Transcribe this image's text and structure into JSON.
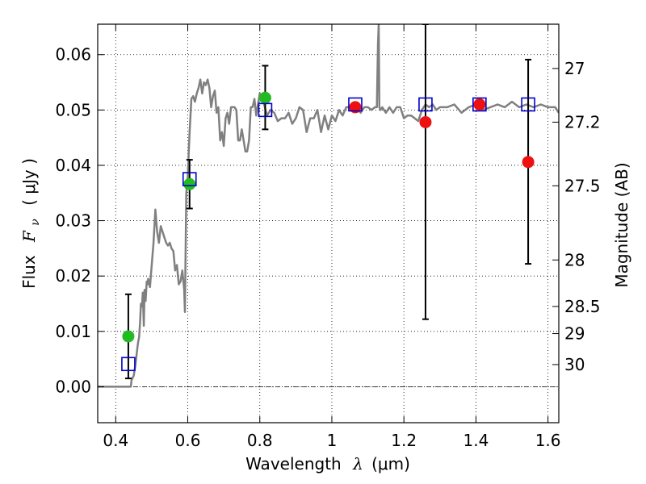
{
  "chart_data": {
    "type": "scatter",
    "xlabel_text": "Wavelength",
    "xlabel_symbol": "λ",
    "xlabel_unit": "(μm)",
    "ylabel_text": "Flux",
    "ylabel_symbol": "F",
    "ylabel_sub": "ν",
    "ylabel_unit": "( μJy )",
    "y2label": "Magnitude (AB)",
    "xlim": [
      0.35,
      1.63
    ],
    "ylim": [
      -0.0065,
      0.0655
    ],
    "xticks": [
      0.4,
      0.6,
      0.8,
      1.0,
      1.2,
      1.4,
      1.6
    ],
    "xtick_labels": [
      "0.4",
      "0.6",
      "0.8",
      "1",
      "1.2",
      "1.4",
      "1.6"
    ],
    "yticks": [
      0.0,
      0.01,
      0.02,
      0.03,
      0.04,
      0.05,
      0.06
    ],
    "ytick_labels": [
      "0.00",
      "0.01",
      "0.02",
      "0.03",
      "0.04",
      "0.05",
      "0.06"
    ],
    "mag_ticks": [
      {
        "label": "27",
        "flux": 0.0575
      },
      {
        "label": "27.2",
        "flux": 0.0478
      },
      {
        "label": "27.5",
        "flux": 0.0363
      },
      {
        "label": "28",
        "flux": 0.0229
      },
      {
        "label": "28.5",
        "flux": 0.0145
      },
      {
        "label": "29",
        "flux": 0.0096
      },
      {
        "label": "30",
        "flux": 0.004
      }
    ],
    "grid": true,
    "colors": {
      "model": "#808080",
      "model_photometry": "#0000cc",
      "observed_green": "#22bb22",
      "observed_red": "#ee1111",
      "errorbar": "#000000"
    },
    "model_spectrum": {
      "x": [
        0.35,
        0.42,
        0.442,
        0.444,
        0.45,
        0.455,
        0.46,
        0.462,
        0.465,
        0.468,
        0.47,
        0.473,
        0.475,
        0.478,
        0.48,
        0.483,
        0.486,
        0.488,
        0.49,
        0.495,
        0.5,
        0.505,
        0.51,
        0.515,
        0.52,
        0.525,
        0.53,
        0.535,
        0.54,
        0.545,
        0.55,
        0.555,
        0.56,
        0.565,
        0.57,
        0.575,
        0.58,
        0.585,
        0.59,
        0.592,
        0.596,
        0.6,
        0.605,
        0.61,
        0.615,
        0.62,
        0.625,
        0.63,
        0.635,
        0.64,
        0.645,
        0.65,
        0.655,
        0.66,
        0.665,
        0.67,
        0.675,
        0.68,
        0.685,
        0.69,
        0.695,
        0.7,
        0.705,
        0.71,
        0.715,
        0.72,
        0.725,
        0.73,
        0.735,
        0.74,
        0.745,
        0.75,
        0.755,
        0.76,
        0.765,
        0.77,
        0.775,
        0.78,
        0.785,
        0.79,
        0.795,
        0.8,
        0.81,
        0.82,
        0.83,
        0.84,
        0.85,
        0.86,
        0.87,
        0.88,
        0.89,
        0.9,
        0.91,
        0.92,
        0.93,
        0.94,
        0.95,
        0.96,
        0.97,
        0.98,
        0.99,
        1.0,
        1.01,
        1.02,
        1.03,
        1.04,
        1.05,
        1.06,
        1.07,
        1.08,
        1.09,
        1.1,
        1.11,
        1.12,
        1.125,
        1.128,
        1.13,
        1.132,
        1.135,
        1.14,
        1.15,
        1.16,
        1.17,
        1.18,
        1.19,
        1.2,
        1.21,
        1.22,
        1.23,
        1.24,
        1.25,
        1.26,
        1.27,
        1.28,
        1.29,
        1.3,
        1.32,
        1.34,
        1.36,
        1.38,
        1.4,
        1.42,
        1.44,
        1.46,
        1.48,
        1.5,
        1.52,
        1.54,
        1.56,
        1.58,
        1.6,
        1.62,
        1.63
      ],
      "y": [
        0.0,
        0.0,
        0.0,
        0.0012,
        0.002,
        0.004,
        0.007,
        0.008,
        0.009,
        0.012,
        0.015,
        0.0145,
        0.017,
        0.011,
        0.0175,
        0.0155,
        0.019,
        0.0185,
        0.0195,
        0.018,
        0.022,
        0.026,
        0.032,
        0.028,
        0.026,
        0.029,
        0.028,
        0.027,
        0.026,
        0.0255,
        0.026,
        0.025,
        0.0245,
        0.021,
        0.022,
        0.0185,
        0.019,
        0.021,
        0.0175,
        0.0135,
        0.035,
        0.038,
        0.046,
        0.052,
        0.0525,
        0.0515,
        0.053,
        0.054,
        0.0555,
        0.053,
        0.055,
        0.0545,
        0.0555,
        0.054,
        0.0505,
        0.0525,
        0.0535,
        0.0495,
        0.0505,
        0.0445,
        0.046,
        0.0435,
        0.0485,
        0.0495,
        0.0475,
        0.0505,
        0.0505,
        0.0505,
        0.05,
        0.0445,
        0.0445,
        0.0465,
        0.0445,
        0.0425,
        0.0425,
        0.0445,
        0.0505,
        0.0505,
        0.052,
        0.049,
        0.051,
        0.053,
        0.0515,
        0.049,
        0.05,
        0.0495,
        0.048,
        0.0485,
        0.0485,
        0.0495,
        0.0475,
        0.0485,
        0.0505,
        0.05,
        0.046,
        0.0485,
        0.0485,
        0.05,
        0.046,
        0.049,
        0.0465,
        0.049,
        0.048,
        0.05,
        0.049,
        0.0505,
        0.0505,
        0.05,
        0.0505,
        0.0495,
        0.0505,
        0.0505,
        0.05,
        0.0505,
        0.0505,
        0.062,
        0.0655,
        0.0505,
        0.05,
        0.0505,
        0.0495,
        0.0505,
        0.0495,
        0.0505,
        0.0505,
        0.0485,
        0.049,
        0.049,
        0.0485,
        0.048,
        0.05,
        0.051,
        0.0505,
        0.051,
        0.05,
        0.0505,
        0.0505,
        0.051,
        0.0495,
        0.0505,
        0.051,
        0.05,
        0.0505,
        0.051,
        0.0505,
        0.0515,
        0.0505,
        0.051,
        0.0505,
        0.051,
        0.0505,
        0.0505,
        0.0495
      ]
    },
    "model_photometry": {
      "x": [
        0.435,
        0.605,
        0.815,
        1.065,
        1.26,
        1.41,
        1.545
      ],
      "y": [
        0.0041,
        0.0375,
        0.05,
        0.051,
        0.051,
        0.051,
        0.051
      ]
    },
    "observed": {
      "x": [
        0.435,
        0.605,
        0.815,
        1.065,
        1.26,
        1.41,
        1.545
      ],
      "y": [
        0.0091,
        0.0366,
        0.0522,
        0.0505,
        0.0478,
        0.051,
        0.0406
      ],
      "err_low": [
        0.0076,
        0.0044,
        0.0057,
        0.0,
        0.0356,
        0.0,
        0.0184
      ],
      "err_high": [
        0.0076,
        0.0044,
        0.0058,
        0.0,
        0.0177,
        0.0,
        0.0185
      ],
      "colors": [
        "green",
        "green",
        "green",
        "red",
        "red",
        "red",
        "red"
      ]
    }
  }
}
